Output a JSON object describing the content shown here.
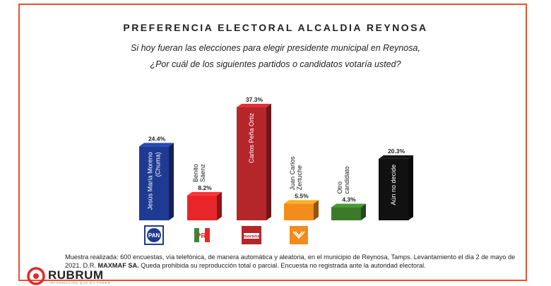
{
  "title": "PREFERENCIA ELECTORAL ALCALDIA REYNOSA",
  "subtitle_1": "Si hoy fueran las elecciones para elegir presidente municipal en Reynosa,",
  "subtitle_2": "¿Por cuál de los siguientes partidos o candidatos votaría usted?",
  "chart_data": {
    "type": "bar",
    "categories": [
      "Jesús María Moreno (Chuma)",
      "Benito Sáenz",
      "Carlos Peña Ortiz",
      "Juan Carlos Zertuche",
      "Otro candidato",
      "Aún no decide"
    ],
    "label_lines": [
      [
        "Jesús María Moreno",
        "(Chuma)"
      ],
      [
        "Benito",
        "Sáenz"
      ],
      [
        "Carlos Peña Ortiz"
      ],
      [
        "Juan Carlos",
        "Zertuche"
      ],
      [
        "Otro",
        "candidato"
      ],
      [
        "Aún no decide"
      ]
    ],
    "values": [
      24.4,
      8.2,
      37.3,
      5.5,
      4.3,
      20.3
    ],
    "value_labels": [
      "24.4%",
      "8.2%",
      "37.3%",
      "5.5%",
      "4.3%",
      "20.3%"
    ],
    "colors": [
      "#1f3a93",
      "#e8262a",
      "#b5262b",
      "#f28c1c",
      "#3c7a2a",
      "#111111"
    ],
    "label_inside": [
      true,
      false,
      true,
      false,
      false,
      true
    ],
    "party_logos": [
      "PAN",
      "PRI",
      "morena",
      "MC",
      "",
      ""
    ],
    "xlabel": "",
    "ylabel": "",
    "ylim": [
      0,
      40
    ]
  },
  "footer_line1": "Muestra realizada: 600 encuestas, vía telefónica, de manera automática y aleatoria, en el municipio de Reynosa, Tamps.  Levantamiento el día 2 de mayo de",
  "footer_line2_a": "2021. D.R. ",
  "footer_line2_b": "MAXMAF SA.",
  "footer_line2_c": " Queda prohibida su reproducción total o parcial. Encuesta no registrada ante la autoridad electoral.",
  "brand_name": "RUBRUM",
  "brand_tagline": "INFORMACIÓN QUE DA PODER",
  "colors": {
    "frame": "#e8532f"
  }
}
